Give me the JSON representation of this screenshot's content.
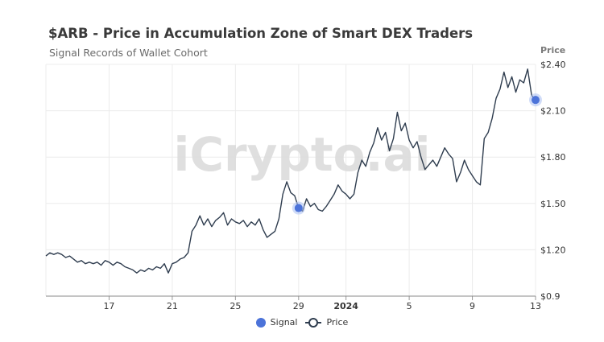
{
  "header": {
    "title": "$ARB - Price in Accumulation Zone of Smart DEX Traders",
    "subtitle": "Signal Records of Wallet Cohort",
    "watermark": "iCrypto.ai"
  },
  "colors": {
    "price_line": "#2f3d4f",
    "signal": "#4c73d9",
    "signal_halo": "#a9c0f2",
    "grid": "#ececec",
    "watermark": "#dcdcdc"
  },
  "legend": {
    "signal_label": "Signal",
    "price_label": "Price"
  },
  "chart_data": {
    "type": "line",
    "title": "$ARB - Price in Accumulation Zone of Smart DEX Traders",
    "subtitle": "Signal Records of Wallet Cohort",
    "ylabel": "Price",
    "xlabel": "",
    "ylim": [
      0.9,
      2.4
    ],
    "xlim": [
      "2023-12-13T00:00",
      "2024-01-13T00:00"
    ],
    "y_ticks": [
      "$0.9",
      "$1.20",
      "$1.50",
      "$1.80",
      "$2.10",
      "$2.40"
    ],
    "y_tick_values": [
      0.9,
      1.2,
      1.5,
      1.8,
      2.1,
      2.4
    ],
    "x_ticks": [
      {
        "label": "17",
        "date": "2023-12-17",
        "bold": false
      },
      {
        "label": "21",
        "date": "2023-12-21",
        "bold": false
      },
      {
        "label": "25",
        "date": "2023-12-25",
        "bold": false
      },
      {
        "label": "29",
        "date": "2023-12-29",
        "bold": false
      },
      {
        "label": "2024",
        "date": "2024-01-01",
        "bold": true
      },
      {
        "label": "5",
        "date": "2024-01-05",
        "bold": false
      },
      {
        "label": "9",
        "date": "2024-01-09",
        "bold": false
      },
      {
        "label": "13",
        "date": "2024-01-13",
        "bold": false
      }
    ],
    "grid": true,
    "legend_position": "bottom",
    "series": [
      {
        "name": "Price",
        "points": [
          [
            "2023-12-13T00:00",
            1.16
          ],
          [
            "2023-12-13T06:00",
            1.18
          ],
          [
            "2023-12-13T12:00",
            1.17
          ],
          [
            "2023-12-13T18:00",
            1.18
          ],
          [
            "2023-12-14T00:00",
            1.17
          ],
          [
            "2023-12-14T06:00",
            1.15
          ],
          [
            "2023-12-14T12:00",
            1.16
          ],
          [
            "2023-12-14T18:00",
            1.14
          ],
          [
            "2023-12-15T00:00",
            1.12
          ],
          [
            "2023-12-15T06:00",
            1.13
          ],
          [
            "2023-12-15T12:00",
            1.11
          ],
          [
            "2023-12-15T18:00",
            1.12
          ],
          [
            "2023-12-16T00:00",
            1.11
          ],
          [
            "2023-12-16T06:00",
            1.12
          ],
          [
            "2023-12-16T12:00",
            1.1
          ],
          [
            "2023-12-16T18:00",
            1.13
          ],
          [
            "2023-12-17T00:00",
            1.12
          ],
          [
            "2023-12-17T06:00",
            1.1
          ],
          [
            "2023-12-17T12:00",
            1.12
          ],
          [
            "2023-12-17T18:00",
            1.11
          ],
          [
            "2023-12-18T00:00",
            1.09
          ],
          [
            "2023-12-18T06:00",
            1.08
          ],
          [
            "2023-12-18T12:00",
            1.07
          ],
          [
            "2023-12-18T18:00",
            1.05
          ],
          [
            "2023-12-19T00:00",
            1.07
          ],
          [
            "2023-12-19T06:00",
            1.06
          ],
          [
            "2023-12-19T12:00",
            1.08
          ],
          [
            "2023-12-19T18:00",
            1.07
          ],
          [
            "2023-12-20T00:00",
            1.09
          ],
          [
            "2023-12-20T06:00",
            1.08
          ],
          [
            "2023-12-20T12:00",
            1.11
          ],
          [
            "2023-12-20T18:00",
            1.05
          ],
          [
            "2023-12-21T00:00",
            1.11
          ],
          [
            "2023-12-21T06:00",
            1.12
          ],
          [
            "2023-12-21T12:00",
            1.14
          ],
          [
            "2023-12-21T18:00",
            1.15
          ],
          [
            "2023-12-22T00:00",
            1.18
          ],
          [
            "2023-12-22T06:00",
            1.32
          ],
          [
            "2023-12-22T12:00",
            1.36
          ],
          [
            "2023-12-22T18:00",
            1.42
          ],
          [
            "2023-12-23T00:00",
            1.36
          ],
          [
            "2023-12-23T06:00",
            1.4
          ],
          [
            "2023-12-23T12:00",
            1.35
          ],
          [
            "2023-12-23T18:00",
            1.39
          ],
          [
            "2023-12-24T00:00",
            1.41
          ],
          [
            "2023-12-24T06:00",
            1.44
          ],
          [
            "2023-12-24T12:00",
            1.36
          ],
          [
            "2023-12-24T18:00",
            1.4
          ],
          [
            "2023-12-25T00:00",
            1.38
          ],
          [
            "2023-12-25T06:00",
            1.37
          ],
          [
            "2023-12-25T12:00",
            1.39
          ],
          [
            "2023-12-25T18:00",
            1.35
          ],
          [
            "2023-12-26T00:00",
            1.38
          ],
          [
            "2023-12-26T06:00",
            1.36
          ],
          [
            "2023-12-26T12:00",
            1.4
          ],
          [
            "2023-12-26T18:00",
            1.33
          ],
          [
            "2023-12-27T00:00",
            1.28
          ],
          [
            "2023-12-27T06:00",
            1.3
          ],
          [
            "2023-12-27T12:00",
            1.32
          ],
          [
            "2023-12-27T18:00",
            1.4
          ],
          [
            "2023-12-28T00:00",
            1.56
          ],
          [
            "2023-12-28T06:00",
            1.64
          ],
          [
            "2023-12-28T12:00",
            1.57
          ],
          [
            "2023-12-28T18:00",
            1.55
          ],
          [
            "2023-12-29T00:00",
            1.47
          ],
          [
            "2023-12-29T06:00",
            1.45
          ],
          [
            "2023-12-29T12:00",
            1.53
          ],
          [
            "2023-12-29T18:00",
            1.48
          ],
          [
            "2023-12-30T00:00",
            1.5
          ],
          [
            "2023-12-30T06:00",
            1.46
          ],
          [
            "2023-12-30T12:00",
            1.45
          ],
          [
            "2023-12-30T18:00",
            1.48
          ],
          [
            "2023-12-31T00:00",
            1.52
          ],
          [
            "2023-12-31T06:00",
            1.56
          ],
          [
            "2023-12-31T12:00",
            1.62
          ],
          [
            "2023-12-31T18:00",
            1.58
          ],
          [
            "2024-01-01T00:00",
            1.56
          ],
          [
            "2024-01-01T06:00",
            1.53
          ],
          [
            "2024-01-01T12:00",
            1.56
          ],
          [
            "2024-01-01T18:00",
            1.7
          ],
          [
            "2024-01-02T00:00",
            1.78
          ],
          [
            "2024-01-02T06:00",
            1.74
          ],
          [
            "2024-01-02T12:00",
            1.83
          ],
          [
            "2024-01-02T18:00",
            1.89
          ],
          [
            "2024-01-03T00:00",
            1.99
          ],
          [
            "2024-01-03T06:00",
            1.91
          ],
          [
            "2024-01-03T12:00",
            1.96
          ],
          [
            "2024-01-03T18:00",
            1.84
          ],
          [
            "2024-01-04T00:00",
            1.92
          ],
          [
            "2024-01-04T06:00",
            2.09
          ],
          [
            "2024-01-04T12:00",
            1.97
          ],
          [
            "2024-01-04T18:00",
            2.02
          ],
          [
            "2024-01-05T00:00",
            1.91
          ],
          [
            "2024-01-05T06:00",
            1.86
          ],
          [
            "2024-01-05T12:00",
            1.9
          ],
          [
            "2024-01-05T18:00",
            1.8
          ],
          [
            "2024-01-06T00:00",
            1.72
          ],
          [
            "2024-01-06T06:00",
            1.75
          ],
          [
            "2024-01-06T12:00",
            1.78
          ],
          [
            "2024-01-06T18:00",
            1.74
          ],
          [
            "2024-01-07T00:00",
            1.8
          ],
          [
            "2024-01-07T06:00",
            1.86
          ],
          [
            "2024-01-07T12:00",
            1.82
          ],
          [
            "2024-01-07T18:00",
            1.79
          ],
          [
            "2024-01-08T00:00",
            1.64
          ],
          [
            "2024-01-08T06:00",
            1.7
          ],
          [
            "2024-01-08T12:00",
            1.78
          ],
          [
            "2024-01-08T18:00",
            1.72
          ],
          [
            "2024-01-09T00:00",
            1.68
          ],
          [
            "2024-01-09T06:00",
            1.64
          ],
          [
            "2024-01-09T12:00",
            1.62
          ],
          [
            "2024-01-09T18:00",
            1.92
          ],
          [
            "2024-01-10T00:00",
            1.96
          ],
          [
            "2024-01-10T06:00",
            2.05
          ],
          [
            "2024-01-10T12:00",
            2.18
          ],
          [
            "2024-01-10T18:00",
            2.24
          ],
          [
            "2024-01-11T00:00",
            2.35
          ],
          [
            "2024-01-11T06:00",
            2.25
          ],
          [
            "2024-01-11T12:00",
            2.32
          ],
          [
            "2024-01-11T18:00",
            2.22
          ],
          [
            "2024-01-12T00:00",
            2.3
          ],
          [
            "2024-01-12T06:00",
            2.28
          ],
          [
            "2024-01-12T12:00",
            2.37
          ],
          [
            "2024-01-12T18:00",
            2.2
          ],
          [
            "2024-01-13T00:00",
            2.17
          ]
        ]
      },
      {
        "name": "Signal",
        "points": [
          [
            "2023-12-29T00:00",
            1.47
          ],
          [
            "2024-01-13T00:00",
            2.17
          ]
        ]
      }
    ]
  }
}
